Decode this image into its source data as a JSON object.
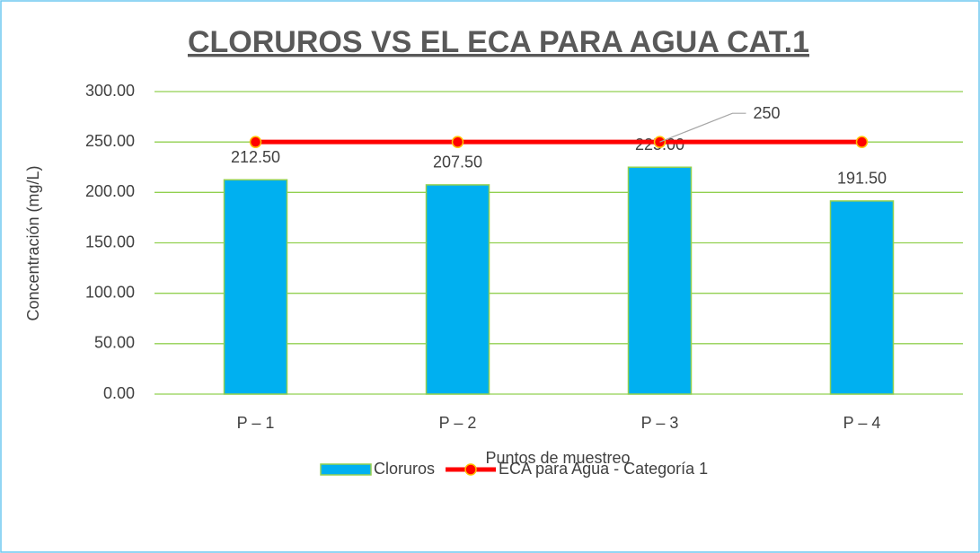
{
  "chart_data": {
    "type": "bar",
    "title": "CLORUROS VS EL ECA PARA AGUA CAT.1",
    "x_label": "Puntos de muestreo",
    "y_label": "Concentración (mg/L)",
    "categories": [
      "P – 1",
      "P – 2",
      "P – 3",
      "P – 4"
    ],
    "series": [
      {
        "name": "Cloruros",
        "type": "bar",
        "color": "#00b0f0",
        "edge_color": "#92d050",
        "values": [
          212.5,
          207.5,
          225,
          191.5
        ],
        "value_labels": [
          "212.50",
          "207.50",
          "225.00",
          "191.50"
        ]
      },
      {
        "name": "ECA para Agua - Categoría 1",
        "type": "line",
        "color": "#ff0000",
        "marker_edge_color": "#ffc000",
        "values": [
          250,
          250,
          250,
          250
        ],
        "value_labels": [
          null,
          null,
          "250",
          null
        ]
      }
    ],
    "ylim": [
      0,
      300
    ],
    "yticks": [
      {
        "value": 0,
        "label": "0.00"
      },
      {
        "value": 50,
        "label": "50.00"
      },
      {
        "value": 100,
        "label": "100.00"
      },
      {
        "value": 150,
        "label": "150.00"
      },
      {
        "value": 200,
        "label": "200.00"
      },
      {
        "value": 250,
        "label": "250.00"
      },
      {
        "value": 300,
        "label": "300.00"
      }
    ],
    "grid": true,
    "grid_color": "#92d050",
    "legend": "bottom"
  }
}
